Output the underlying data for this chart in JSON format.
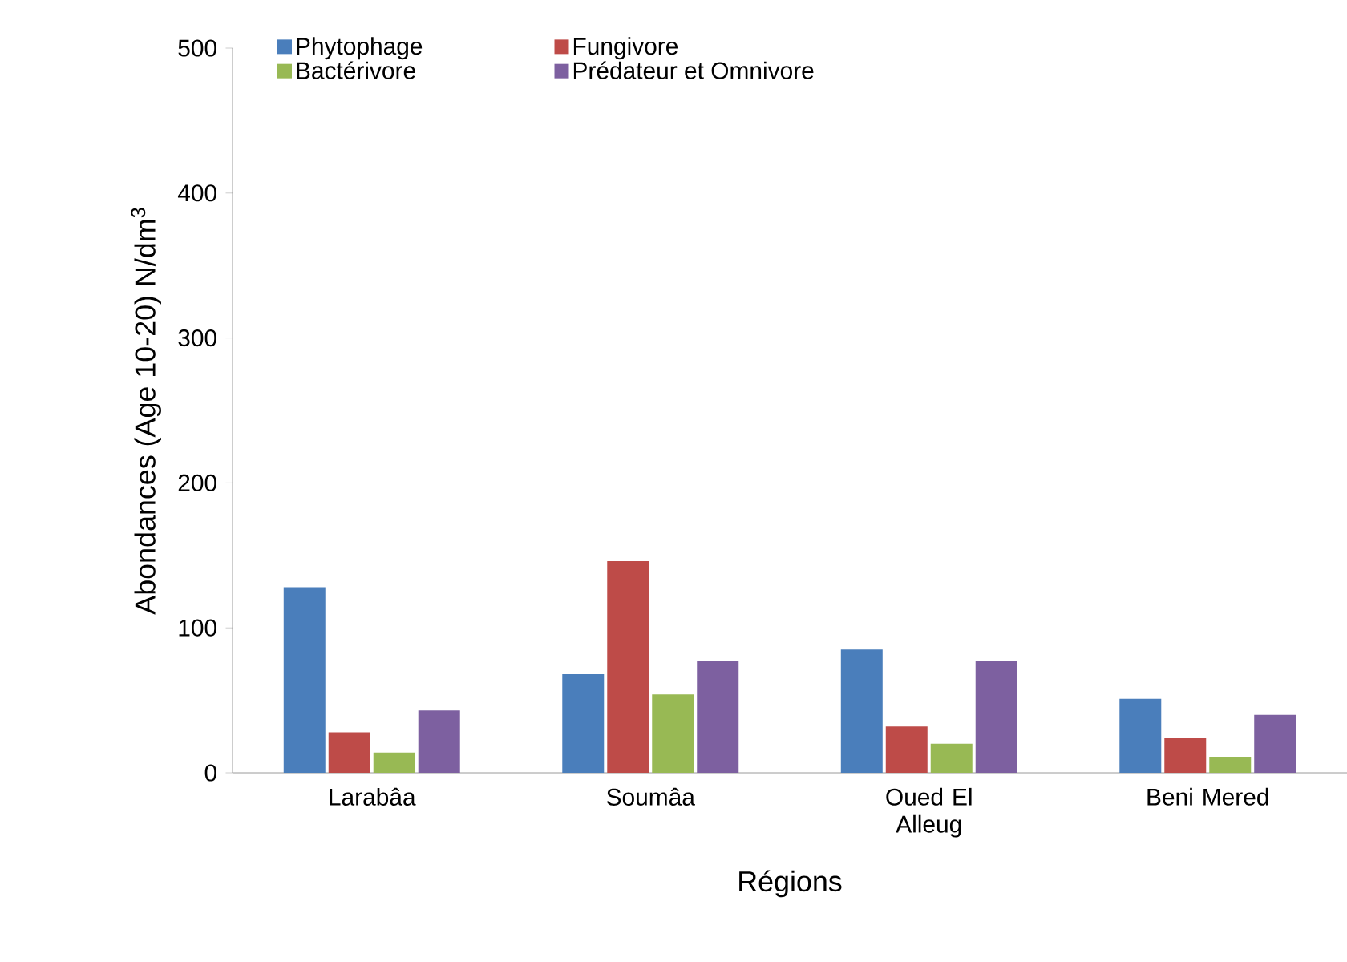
{
  "chart_data": {
    "type": "bar",
    "ylabel": "Abondances (Age 10-20) N/dm$^{3}$",
    "xlabel": "Régions",
    "categories": [
      "Larabâa",
      "Soumâa",
      "Oued El Alleug",
      "Beni Mered"
    ],
    "series": [
      {
        "name": "Phytophage",
        "color": "#4a7ebb",
        "values": [
          128,
          68,
          85,
          51
        ]
      },
      {
        "name": "Fungivore",
        "color": "#be4b48",
        "values": [
          28,
          146,
          32,
          24
        ]
      },
      {
        "name": "Bactérivore",
        "color": "#98b954",
        "values": [
          14,
          54,
          20,
          11
        ]
      },
      {
        "name": "Prédateur et Omnivore",
        "color": "#7d60a0",
        "values": [
          43,
          77,
          77,
          40
        ]
      }
    ],
    "ylim": [
      0,
      500
    ],
    "yticks": [
      0,
      100,
      200,
      300,
      400,
      500
    ],
    "legend": "top"
  }
}
